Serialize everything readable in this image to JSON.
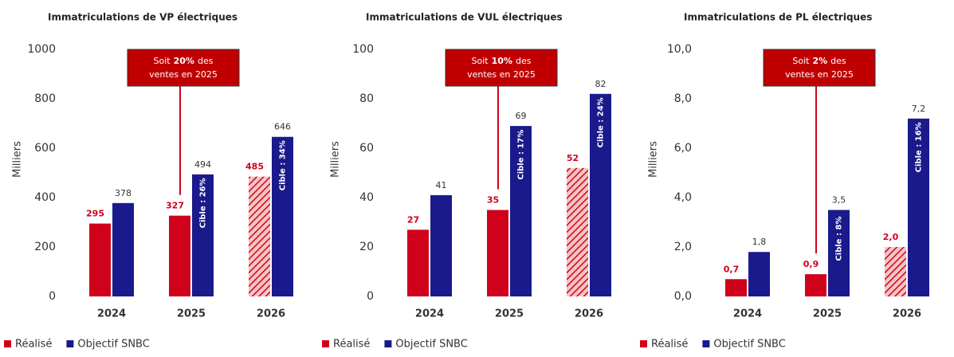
{
  "chart_data": [
    {
      "type": "bar",
      "title": "Immatriculations de VP électriques",
      "y_label": "Milliers",
      "categories": [
        "2024",
        "2025",
        "2026"
      ],
      "series": [
        {
          "name": "Réalisé",
          "color": "#d0021b",
          "values": [
            295,
            327,
            485
          ],
          "hatched": [
            false,
            false,
            true
          ]
        },
        {
          "name": "Objectif SNBC",
          "color": "#1a1a8c",
          "values": [
            378,
            494,
            646
          ],
          "inner_labels": [
            null,
            "Cible : 26%",
            "Cible : 34%"
          ]
        }
      ],
      "ylim": [
        0,
        1000
      ],
      "yticks": [
        0,
        200,
        400,
        600,
        800,
        1000
      ],
      "annotation": {
        "line1": [
          "Soit",
          "20%",
          "des"
        ],
        "line2": "ventes en 2025"
      }
    },
    {
      "type": "bar",
      "title": "Immatriculations de VUL électriques",
      "y_label": "Milliers",
      "categories": [
        "2024",
        "2025",
        "2026"
      ],
      "series": [
        {
          "name": "Réalisé",
          "color": "#d0021b",
          "values": [
            27,
            35,
            52
          ],
          "hatched": [
            false,
            false,
            true
          ]
        },
        {
          "name": "Objectif SNBC",
          "color": "#1a1a8c",
          "values": [
            41,
            69,
            82
          ],
          "inner_labels": [
            null,
            "Cible : 17%",
            "Cible : 24%"
          ]
        }
      ],
      "ylim": [
        0,
        100
      ],
      "yticks": [
        0,
        20,
        40,
        60,
        80,
        100
      ],
      "annotation": {
        "line1": [
          "Soit",
          "10%",
          "des"
        ],
        "line2": "ventes en 2025"
      }
    },
    {
      "type": "bar",
      "title": "Immatriculations de PL électriques",
      "y_label": "Milliers",
      "categories": [
        "2024",
        "2025",
        "2026"
      ],
      "series": [
        {
          "name": "Réalisé",
          "color": "#d0021b",
          "values": [
            0.7,
            0.9,
            2.0
          ],
          "value_labels": [
            "0,7",
            "0,9",
            "2,0"
          ],
          "hatched": [
            false,
            false,
            true
          ]
        },
        {
          "name": "Objectif SNBC",
          "color": "#1a1a8c",
          "values": [
            1.8,
            3.5,
            7.2
          ],
          "value_labels": [
            "1,8",
            "3,5",
            "7,2"
          ],
          "inner_labels": [
            null,
            "Cible : 8%",
            "Cible : 16%"
          ]
        }
      ],
      "ylim": [
        0,
        10
      ],
      "yticks": [
        {
          "value": 0,
          "label": "0,0"
        },
        {
          "value": 2,
          "label": "2,0"
        },
        {
          "value": 4,
          "label": "4,0"
        },
        {
          "value": 6,
          "label": "6,0"
        },
        {
          "value": 8,
          "label": "8,0"
        },
        {
          "value": 10,
          "label": "10,0"
        }
      ],
      "annotation": {
        "line1": [
          "Soit",
          "2%",
          "des"
        ],
        "line2": "ventes en 2025"
      }
    }
  ]
}
